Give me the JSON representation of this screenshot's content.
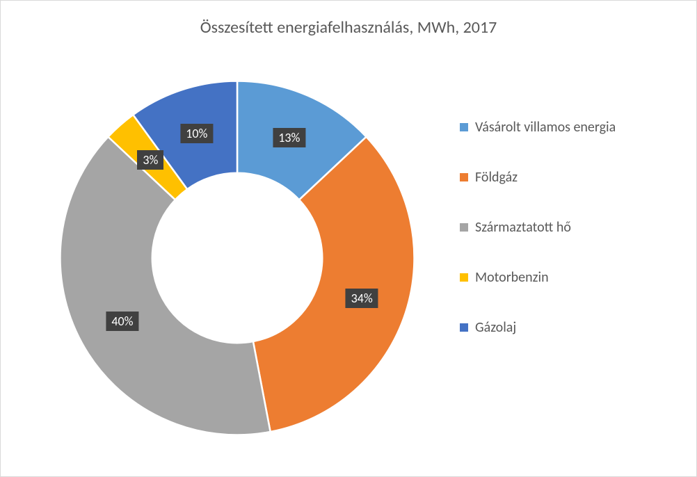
{
  "chart": {
    "type": "donut",
    "title": "Összesített energiafelhasználás, MWh, 2017",
    "title_fontsize": 24,
    "title_color": "#595959",
    "background_color": "#ffffff",
    "border_color": "#d9d9d9",
    "inner_radius_ratio": 0.48,
    "outer_radius_ratio": 1.0,
    "start_angle_deg": 0,
    "label_bg": "#404040",
    "label_color": "#ffffff",
    "label_fontsize": 18,
    "legend_fontsize": 20,
    "legend_text_color": "#595959",
    "legend_swatch_size": 12,
    "series": [
      {
        "name": "Vásárolt villamos energia",
        "value": 13,
        "label": "13%",
        "color": "#5b9bd5"
      },
      {
        "name": "Földgáz",
        "value": 34,
        "label": "34%",
        "color": "#ed7d31"
      },
      {
        "name": "Származtatott hő",
        "value": 40,
        "label": "40%",
        "color": "#a5a5a5"
      },
      {
        "name": "Motorbenzin",
        "value": 3,
        "label": "3%",
        "color": "#ffc000"
      },
      {
        "name": "Gázolaj",
        "value": 10,
        "label": "10%",
        "color": "#4472c4"
      }
    ]
  }
}
